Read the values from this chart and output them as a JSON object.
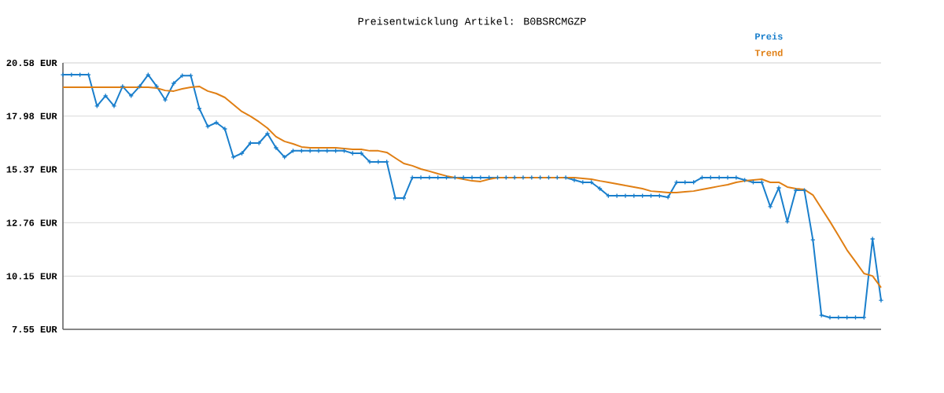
{
  "chart_data": {
    "type": "line",
    "title": "Preisentwicklung Artikel: B0BSRCMGZP",
    "categories": [
      null,
      null,
      null,
      null,
      null,
      null,
      null,
      null,
      null,
      null,
      null,
      null,
      null,
      null,
      null,
      null,
      null,
      null,
      null,
      null,
      null,
      null,
      null,
      null,
      null,
      null,
      null,
      null,
      null,
      null,
      null,
      null,
      null,
      null,
      null,
      null,
      null,
      null,
      null,
      null,
      null,
      null,
      null,
      null,
      null,
      null,
      null,
      null,
      null,
      null,
      null,
      null,
      null,
      null,
      null,
      null,
      null,
      null,
      null,
      null,
      null,
      null,
      null,
      null,
      null,
      null,
      null,
      null,
      null,
      null,
      null,
      null,
      null,
      null,
      null,
      null,
      null,
      null,
      null,
      null,
      null,
      null,
      null,
      null,
      null,
      null,
      null,
      null,
      null,
      null,
      null,
      null,
      null,
      null,
      null,
      null,
      null
    ],
    "series": [
      {
        "name": "Preis",
        "color": "#1a7fcc",
        "marker": "cross",
        "values": [
          20.0,
          20.0,
          20.0,
          20.0,
          18.47,
          18.97,
          18.47,
          19.43,
          18.97,
          19.43,
          20.0,
          19.43,
          18.77,
          19.58,
          19.96,
          19.96,
          18.35,
          17.47,
          17.66,
          17.35,
          15.97,
          16.16,
          16.66,
          16.66,
          17.12,
          16.43,
          15.97,
          16.28,
          16.28,
          16.28,
          16.28,
          16.28,
          16.28,
          16.28,
          16.16,
          16.16,
          15.74,
          15.74,
          15.74,
          13.97,
          13.97,
          14.97,
          14.97,
          14.97,
          14.97,
          14.97,
          14.97,
          14.97,
          14.97,
          14.97,
          14.97,
          14.97,
          14.97,
          14.97,
          14.97,
          14.97,
          14.97,
          14.97,
          14.97,
          14.97,
          14.85,
          14.74,
          14.74,
          14.43,
          14.08,
          14.08,
          14.08,
          14.08,
          14.08,
          14.08,
          14.08,
          14.01,
          14.74,
          14.74,
          14.74,
          14.97,
          14.97,
          14.97,
          14.97,
          14.97,
          14.85,
          14.74,
          14.74,
          13.55,
          14.47,
          12.82,
          14.35,
          14.35,
          11.93,
          8.24,
          8.13,
          8.13,
          8.13,
          8.13,
          8.13,
          11.97,
          8.97
        ]
      },
      {
        "name": "Trend",
        "color": "#e07f14",
        "marker": "none",
        "values": [
          19.39,
          19.39,
          19.39,
          19.39,
          19.39,
          19.39,
          19.39,
          19.39,
          19.39,
          19.39,
          19.39,
          19.35,
          19.23,
          19.2,
          19.31,
          19.39,
          19.43,
          19.2,
          19.08,
          18.89,
          18.54,
          18.2,
          17.97,
          17.7,
          17.39,
          16.97,
          16.74,
          16.62,
          16.47,
          16.43,
          16.43,
          16.43,
          16.43,
          16.39,
          16.35,
          16.35,
          16.28,
          16.28,
          16.2,
          15.93,
          15.66,
          15.55,
          15.39,
          15.28,
          15.16,
          15.05,
          14.97,
          14.89,
          14.81,
          14.78,
          14.89,
          14.97,
          14.97,
          14.97,
          14.97,
          14.97,
          14.97,
          14.97,
          14.97,
          14.97,
          14.97,
          14.93,
          14.89,
          14.81,
          14.74,
          14.66,
          14.58,
          14.51,
          14.43,
          14.31,
          14.28,
          14.24,
          14.24,
          14.28,
          14.31,
          14.39,
          14.47,
          14.55,
          14.62,
          14.74,
          14.81,
          14.85,
          14.89,
          14.74,
          14.74,
          14.51,
          14.43,
          14.39,
          14.12,
          13.47,
          12.82,
          12.13,
          11.43,
          10.86,
          10.28,
          10.16,
          9.59
        ]
      }
    ],
    "ylim": [
      7.55,
      20.58
    ],
    "yticks": [
      {
        "value": 7.55,
        "label": "7.55 EUR"
      },
      {
        "value": 10.15,
        "label": "10.15 EUR"
      },
      {
        "value": 12.76,
        "label": "12.76 EUR"
      },
      {
        "value": 15.37,
        "label": "15.37 EUR"
      },
      {
        "value": 17.98,
        "label": "17.98 EUR"
      },
      {
        "value": 20.58,
        "label": "20.58 EUR"
      }
    ],
    "grid": "y",
    "legend": "top right",
    "tick_labels": "y",
    "line_style": "solid"
  }
}
